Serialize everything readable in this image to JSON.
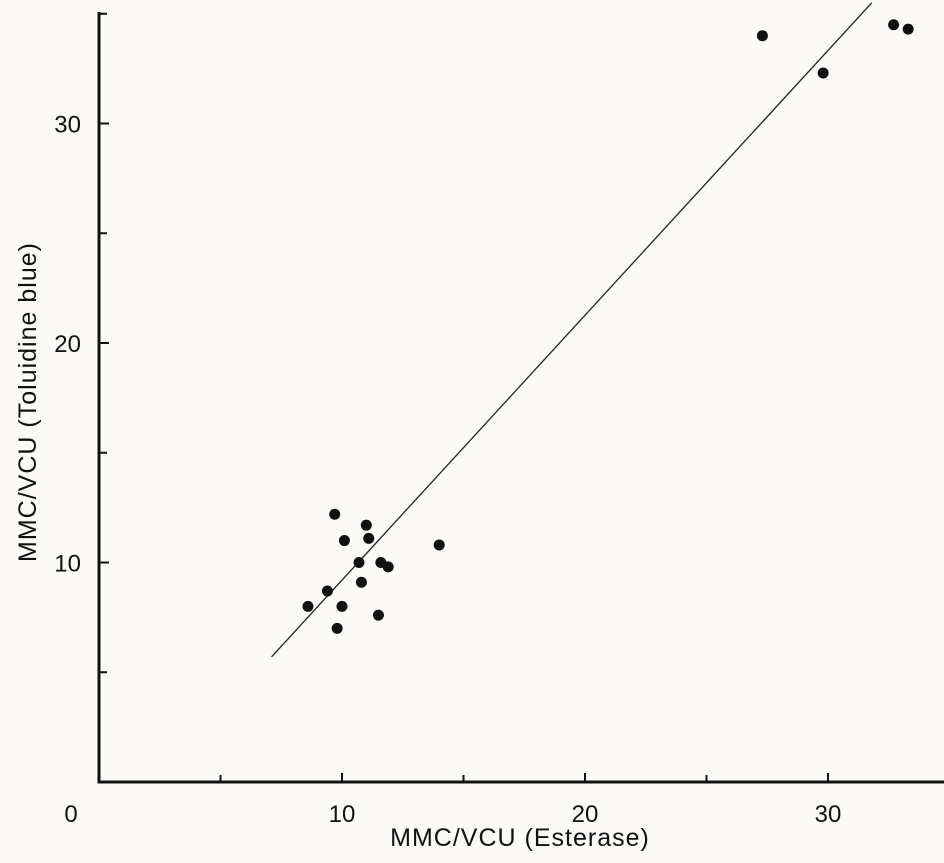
{
  "chart_data": {
    "type": "scatter",
    "title": "",
    "xlabel": "MMC/VCU (Esterase)",
    "ylabel": "MMC/VCU (Toluidine blue)",
    "xlim": [
      0,
      34.5
    ],
    "ylim": [
      0,
      35
    ],
    "x_ticks": [
      0,
      10,
      20,
      30
    ],
    "x_minor_ticks": [
      5,
      15,
      25
    ],
    "y_ticks": [
      10,
      20,
      30
    ],
    "y_minor_ticks": [
      5,
      15,
      25,
      35
    ],
    "grid": false,
    "legend": "none",
    "colors": {
      "points": "#111111",
      "line": "#222222",
      "axes": "#111111",
      "background": "#fbfaf7"
    },
    "points": [
      {
        "x": 8.6,
        "y": 8.0
      },
      {
        "x": 9.4,
        "y": 8.7
      },
      {
        "x": 9.8,
        "y": 7.0
      },
      {
        "x": 10.0,
        "y": 8.0
      },
      {
        "x": 9.7,
        "y": 12.2
      },
      {
        "x": 10.1,
        "y": 11.0
      },
      {
        "x": 10.7,
        "y": 10.0
      },
      {
        "x": 10.8,
        "y": 9.1
      },
      {
        "x": 11.0,
        "y": 11.7
      },
      {
        "x": 11.1,
        "y": 11.1
      },
      {
        "x": 11.5,
        "y": 7.6
      },
      {
        "x": 11.6,
        "y": 10.0
      },
      {
        "x": 11.9,
        "y": 9.8
      },
      {
        "x": 14.0,
        "y": 10.8
      },
      {
        "x": 27.3,
        "y": 34.0
      },
      {
        "x": 29.8,
        "y": 32.3
      },
      {
        "x": 32.7,
        "y": 34.5
      },
      {
        "x": 33.3,
        "y": 34.3
      }
    ],
    "regression_line": {
      "x": [
        7.1,
        31.8
      ],
      "y": [
        5.7,
        35.5
      ]
    }
  }
}
